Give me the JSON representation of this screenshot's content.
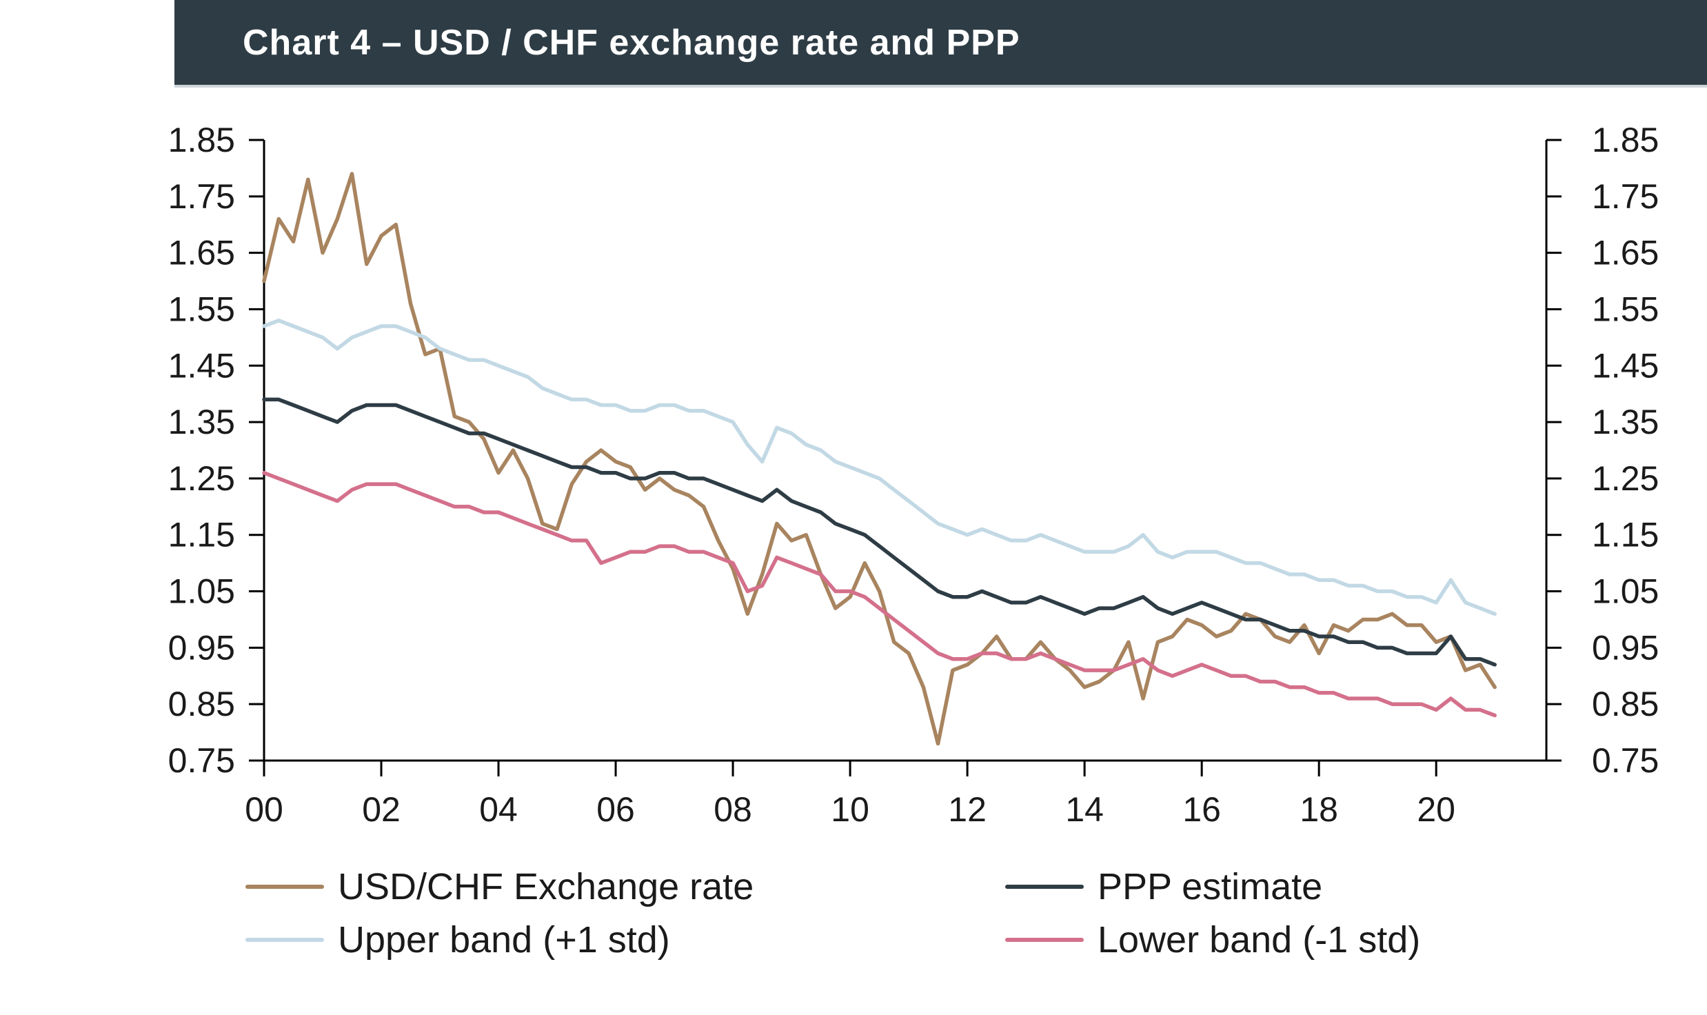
{
  "header": {
    "title": "Chart 4 – USD / CHF exchange rate and PPP"
  },
  "colors": {
    "header_bg": "#2e3c45",
    "title_text": "#ffffff",
    "axis": "#000000",
    "tick_label": "#1a1a1a"
  },
  "chart_data": {
    "type": "line",
    "title": "Chart 4 – USD / CHF exchange rate and PPP",
    "xlabel": "",
    "ylabel": "",
    "grid": false,
    "legend_position": "bottom",
    "xlim": [
      2000,
      2021.88
    ],
    "ylim": [
      0.75,
      1.85
    ],
    "x_ticks": [
      2000,
      2002,
      2004,
      2006,
      2008,
      2010,
      2012,
      2014,
      2016,
      2018,
      2020
    ],
    "x_tick_labels": [
      "00",
      "02",
      "04",
      "06",
      "08",
      "10",
      "12",
      "14",
      "16",
      "18",
      "20"
    ],
    "y_ticks": [
      0.75,
      0.85,
      0.95,
      1.05,
      1.15,
      1.25,
      1.35,
      1.45,
      1.55,
      1.65,
      1.75,
      1.85
    ],
    "y_tick_labels": [
      "0.75",
      "0.85",
      "0.95",
      "1.05",
      "1.15",
      "1.25",
      "1.35",
      "1.45",
      "1.55",
      "1.65",
      "1.75",
      "1.85"
    ],
    "y_axis_sides": [
      "left",
      "right"
    ],
    "x": [
      2000.0,
      2000.25,
      2000.5,
      2000.75,
      2001.0,
      2001.25,
      2001.5,
      2001.75,
      2002.0,
      2002.25,
      2002.5,
      2002.75,
      2003.0,
      2003.25,
      2003.5,
      2003.75,
      2004.0,
      2004.25,
      2004.5,
      2004.75,
      2005.0,
      2005.25,
      2005.5,
      2005.75,
      2006.0,
      2006.25,
      2006.5,
      2006.75,
      2007.0,
      2007.25,
      2007.5,
      2007.75,
      2008.0,
      2008.25,
      2008.5,
      2008.75,
      2009.0,
      2009.25,
      2009.5,
      2009.75,
      2010.0,
      2010.25,
      2010.5,
      2010.75,
      2011.0,
      2011.25,
      2011.5,
      2011.75,
      2012.0,
      2012.25,
      2012.5,
      2012.75,
      2013.0,
      2013.25,
      2013.5,
      2013.75,
      2014.0,
      2014.25,
      2014.5,
      2014.75,
      2015.0,
      2015.25,
      2015.5,
      2015.75,
      2016.0,
      2016.25,
      2016.5,
      2016.75,
      2017.0,
      2017.25,
      2017.5,
      2017.75,
      2018.0,
      2018.25,
      2018.5,
      2018.75,
      2019.0,
      2019.25,
      2019.5,
      2019.75,
      2020.0,
      2020.25,
      2020.5,
      2020.75,
      2021.0
    ],
    "series": [
      {
        "name": "USD/CHF Exchange rate",
        "color": "#a8845f",
        "values": [
          1.6,
          1.71,
          1.67,
          1.78,
          1.65,
          1.71,
          1.79,
          1.63,
          1.68,
          1.7,
          1.56,
          1.47,
          1.48,
          1.36,
          1.35,
          1.32,
          1.26,
          1.3,
          1.25,
          1.17,
          1.16,
          1.24,
          1.28,
          1.3,
          1.28,
          1.27,
          1.23,
          1.25,
          1.23,
          1.22,
          1.2,
          1.14,
          1.09,
          1.01,
          1.08,
          1.17,
          1.14,
          1.15,
          1.08,
          1.02,
          1.04,
          1.1,
          1.05,
          0.96,
          0.94,
          0.88,
          0.78,
          0.91,
          0.92,
          0.94,
          0.97,
          0.93,
          0.93,
          0.96,
          0.93,
          0.91,
          0.88,
          0.89,
          0.91,
          0.96,
          0.86,
          0.96,
          0.97,
          1.0,
          0.99,
          0.97,
          0.98,
          1.01,
          1.0,
          0.97,
          0.96,
          0.99,
          0.94,
          0.99,
          0.98,
          1.0,
          1.0,
          1.01,
          0.99,
          0.99,
          0.96,
          0.97,
          0.91,
          0.92,
          0.88
        ]
      },
      {
        "name": "PPP estimate",
        "color": "#2e3c45",
        "values": [
          1.39,
          1.39,
          1.38,
          1.37,
          1.36,
          1.35,
          1.37,
          1.38,
          1.38,
          1.38,
          1.37,
          1.36,
          1.35,
          1.34,
          1.33,
          1.33,
          1.32,
          1.31,
          1.3,
          1.29,
          1.28,
          1.27,
          1.27,
          1.26,
          1.26,
          1.25,
          1.25,
          1.26,
          1.26,
          1.25,
          1.25,
          1.24,
          1.23,
          1.22,
          1.21,
          1.23,
          1.21,
          1.2,
          1.19,
          1.17,
          1.16,
          1.15,
          1.13,
          1.11,
          1.09,
          1.07,
          1.05,
          1.04,
          1.04,
          1.05,
          1.04,
          1.03,
          1.03,
          1.04,
          1.03,
          1.02,
          1.01,
          1.02,
          1.02,
          1.03,
          1.04,
          1.02,
          1.01,
          1.02,
          1.03,
          1.02,
          1.01,
          1.0,
          1.0,
          0.99,
          0.98,
          0.98,
          0.97,
          0.97,
          0.96,
          0.96,
          0.95,
          0.95,
          0.94,
          0.94,
          0.94,
          0.97,
          0.93,
          0.93,
          0.92
        ]
      },
      {
        "name": "Upper band (+1 std)",
        "color": "#c2d9e5",
        "values": [
          1.52,
          1.53,
          1.52,
          1.51,
          1.5,
          1.48,
          1.5,
          1.51,
          1.52,
          1.52,
          1.51,
          1.5,
          1.48,
          1.47,
          1.46,
          1.46,
          1.45,
          1.44,
          1.43,
          1.41,
          1.4,
          1.39,
          1.39,
          1.38,
          1.38,
          1.37,
          1.37,
          1.38,
          1.38,
          1.37,
          1.37,
          1.36,
          1.35,
          1.31,
          1.28,
          1.34,
          1.33,
          1.31,
          1.3,
          1.28,
          1.27,
          1.26,
          1.25,
          1.23,
          1.21,
          1.19,
          1.17,
          1.16,
          1.15,
          1.16,
          1.15,
          1.14,
          1.14,
          1.15,
          1.14,
          1.13,
          1.12,
          1.12,
          1.12,
          1.13,
          1.15,
          1.12,
          1.11,
          1.12,
          1.12,
          1.12,
          1.11,
          1.1,
          1.1,
          1.09,
          1.08,
          1.08,
          1.07,
          1.07,
          1.06,
          1.06,
          1.05,
          1.05,
          1.04,
          1.04,
          1.03,
          1.07,
          1.03,
          1.02,
          1.01
        ]
      },
      {
        "name": "Lower band (-1 std)",
        "color": "#d4708b",
        "values": [
          1.26,
          1.25,
          1.24,
          1.23,
          1.22,
          1.21,
          1.23,
          1.24,
          1.24,
          1.24,
          1.23,
          1.22,
          1.21,
          1.2,
          1.2,
          1.19,
          1.19,
          1.18,
          1.17,
          1.16,
          1.15,
          1.14,
          1.14,
          1.1,
          1.11,
          1.12,
          1.12,
          1.13,
          1.13,
          1.12,
          1.12,
          1.11,
          1.1,
          1.05,
          1.06,
          1.11,
          1.1,
          1.09,
          1.08,
          1.05,
          1.05,
          1.04,
          1.02,
          1.0,
          0.98,
          0.96,
          0.94,
          0.93,
          0.93,
          0.94,
          0.94,
          0.93,
          0.93,
          0.94,
          0.93,
          0.92,
          0.91,
          0.91,
          0.91,
          0.92,
          0.93,
          0.91,
          0.9,
          0.91,
          0.92,
          0.91,
          0.9,
          0.9,
          0.89,
          0.89,
          0.88,
          0.88,
          0.87,
          0.87,
          0.86,
          0.86,
          0.86,
          0.85,
          0.85,
          0.85,
          0.84,
          0.86,
          0.84,
          0.84,
          0.83
        ]
      }
    ]
  },
  "legend": {
    "rows": 2,
    "columns": 2
  }
}
